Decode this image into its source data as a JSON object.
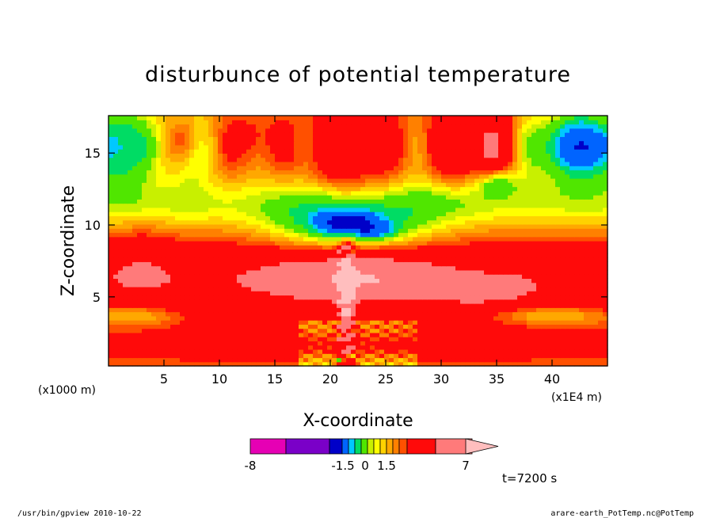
{
  "chart_data": {
    "type": "heatmap",
    "title": "disturbunce of potential temperature",
    "xlabel": "X-coordinate",
    "ylabel": "Z-coordinate",
    "x_units": "(x1E4 m)",
    "y_units": "(x1000 m)",
    "xlim": [
      0,
      45
    ],
    "ylim": [
      0.2,
      17.6
    ],
    "x_ticks": [
      5,
      10,
      15,
      20,
      25,
      30,
      35,
      40
    ],
    "y_ticks": [
      5,
      10,
      15
    ],
    "colorbar": {
      "labels": [
        {
          "text": "-8",
          "value": -8
        },
        {
          "text": "-1.5",
          "value": -1.5
        },
        {
          "text": "0",
          "value": 0
        },
        {
          "text": "1.5",
          "value": 1.5
        },
        {
          "text": "7",
          "value": 7
        }
      ],
      "levels": [
        -8,
        -6,
        -3,
        -1.5,
        -1,
        -0.5,
        0,
        0.25,
        0.5,
        0.75,
        1,
        1.25,
        1.5,
        3,
        5,
        7
      ],
      "colors": [
        "#e600b4",
        "#7a00c8",
        "#0000c8",
        "#0064ff",
        "#00c8ff",
        "#00dc64",
        "#50e600",
        "#c8f000",
        "#ffff00",
        "#ffd200",
        "#ffa800",
        "#ff8000",
        "#ff5000",
        "#ff0a0a",
        "#ff7a7a",
        "#ffbebe"
      ]
    },
    "annotation": "t=7200 s",
    "footer_left": "/usr/bin/gpview  2010-10-22",
    "footer_right": "arare-earth_PotTemp.nc@PotTemp"
  }
}
